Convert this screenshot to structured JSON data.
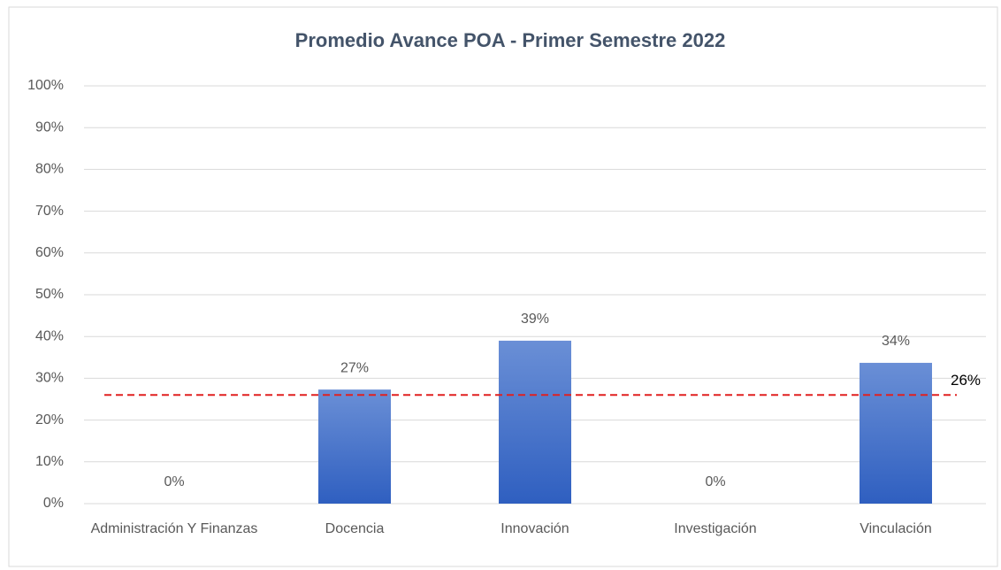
{
  "chart_data": {
    "type": "bar",
    "title": "Promedio Avance POA - Primer Semestre 2022",
    "categories": [
      "Administración Y Finanzas",
      "Docencia",
      "Innovación",
      "Investigación",
      "Vinculación"
    ],
    "values": [
      0,
      27.3,
      39,
      0,
      33.7
    ],
    "value_labels": [
      "0%",
      "27%",
      "39%",
      "0%",
      "34%"
    ],
    "color": "#4472c4",
    "ylim": [
      0,
      100
    ],
    "yticks": [
      {
        "value": 0,
        "label": "0%"
      },
      {
        "value": 10,
        "label": "10%"
      },
      {
        "value": 20,
        "label": "20%"
      },
      {
        "value": 30,
        "label": "30%"
      },
      {
        "value": 40,
        "label": "40%"
      },
      {
        "value": 50,
        "label": "50%"
      },
      {
        "value": 60,
        "label": "60%"
      },
      {
        "value": 70,
        "label": "70%"
      },
      {
        "value": 80,
        "label": "80%"
      },
      {
        "value": 90,
        "label": "90%"
      },
      {
        "value": 100,
        "label": "100%"
      }
    ],
    "grid": true,
    "reference_line": {
      "value": 26,
      "label": "26%",
      "color": "#e02020"
    }
  }
}
